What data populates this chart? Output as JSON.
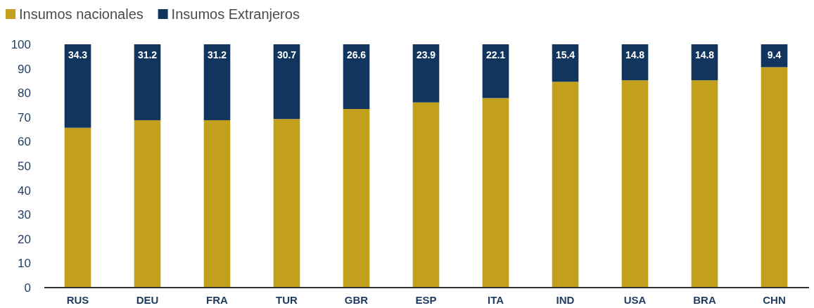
{
  "chart_data": {
    "type": "bar",
    "stacked": true,
    "legend": "top left",
    "categories": [
      "RUS",
      "DEU",
      "FRA",
      "TUR",
      "GBR",
      "ESP",
      "ITA",
      "IND",
      "USA",
      "BRA",
      "CHN"
    ],
    "series": [
      {
        "name": "Insumos nacionales",
        "color": "#c3a01b",
        "values": [
          65.7,
          68.8,
          68.8,
          69.3,
          73.4,
          76.1,
          77.9,
          84.6,
          85.2,
          85.2,
          90.6
        ]
      },
      {
        "name": "Insumos Extranjeros",
        "color": "#12355e",
        "values": [
          34.3,
          31.2,
          31.2,
          30.7,
          26.6,
          23.9,
          22.1,
          15.4,
          14.8,
          14.8,
          9.4
        ],
        "value_labels": [
          "34.3",
          "31.2",
          "31.2",
          "30.7",
          "26.6",
          "23.9",
          "22.1",
          "15.4",
          "14.8",
          "14.8",
          "9.4"
        ]
      }
    ],
    "ylim": [
      0,
      100
    ],
    "yticks": [
      0,
      10,
      20,
      30,
      40,
      50,
      60,
      70,
      80,
      90,
      100
    ]
  }
}
